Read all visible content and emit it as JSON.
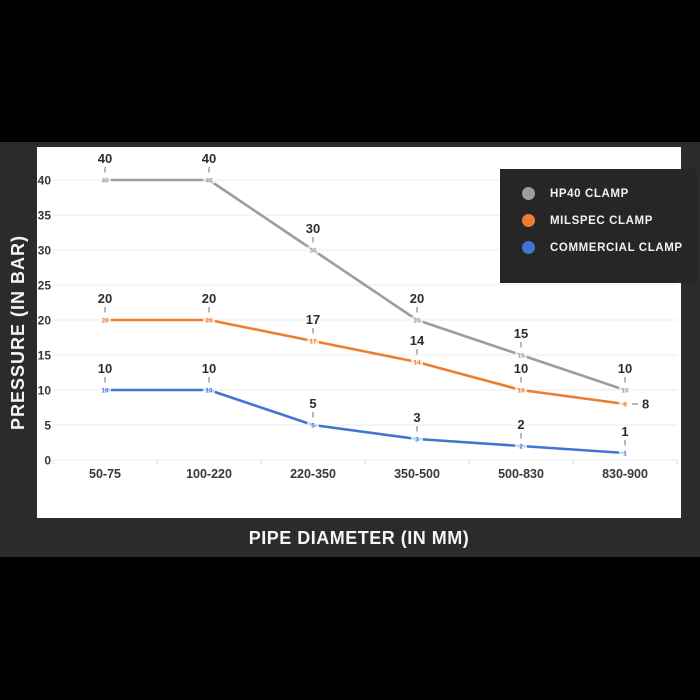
{
  "colors": {
    "background": "#000000",
    "panel": "#2b2b2b",
    "card": "#ffffff",
    "legend_bg": "#262626",
    "gridline": "#ebebeb",
    "axis_tick_text": "#383838",
    "data_label_text": "#2e2e2e",
    "leader_dash": "#9a9a9a",
    "axis_title_text": "#f5f5f5"
  },
  "chart_data": {
    "type": "line",
    "title": "",
    "xlabel": "PIPE DIAMETER (IN MM)",
    "ylabel": "PRESSURE (IN BAR)",
    "categories": [
      "50-75",
      "100-220",
      "220-350",
      "350-500",
      "500-830",
      "830-900"
    ],
    "y_ticks": [
      0,
      5,
      10,
      15,
      20,
      25,
      30,
      35,
      40
    ],
    "ylim": [
      0,
      40
    ],
    "grid": true,
    "data_labels_visible": true,
    "legend_position": "top-right",
    "series": [
      {
        "name": "HP40 CLAMP",
        "color": "#9d9d9d",
        "values": [
          40,
          40,
          30,
          20,
          15,
          10
        ]
      },
      {
        "name": "MILSPEC CLAMP",
        "color": "#ed7d31",
        "values": [
          20,
          20,
          17,
          14,
          10,
          8
        ]
      },
      {
        "name": "COMMERCIAL CLAMP",
        "color": "#3f76d4",
        "values": [
          10,
          10,
          5,
          3,
          2,
          1
        ]
      }
    ]
  }
}
